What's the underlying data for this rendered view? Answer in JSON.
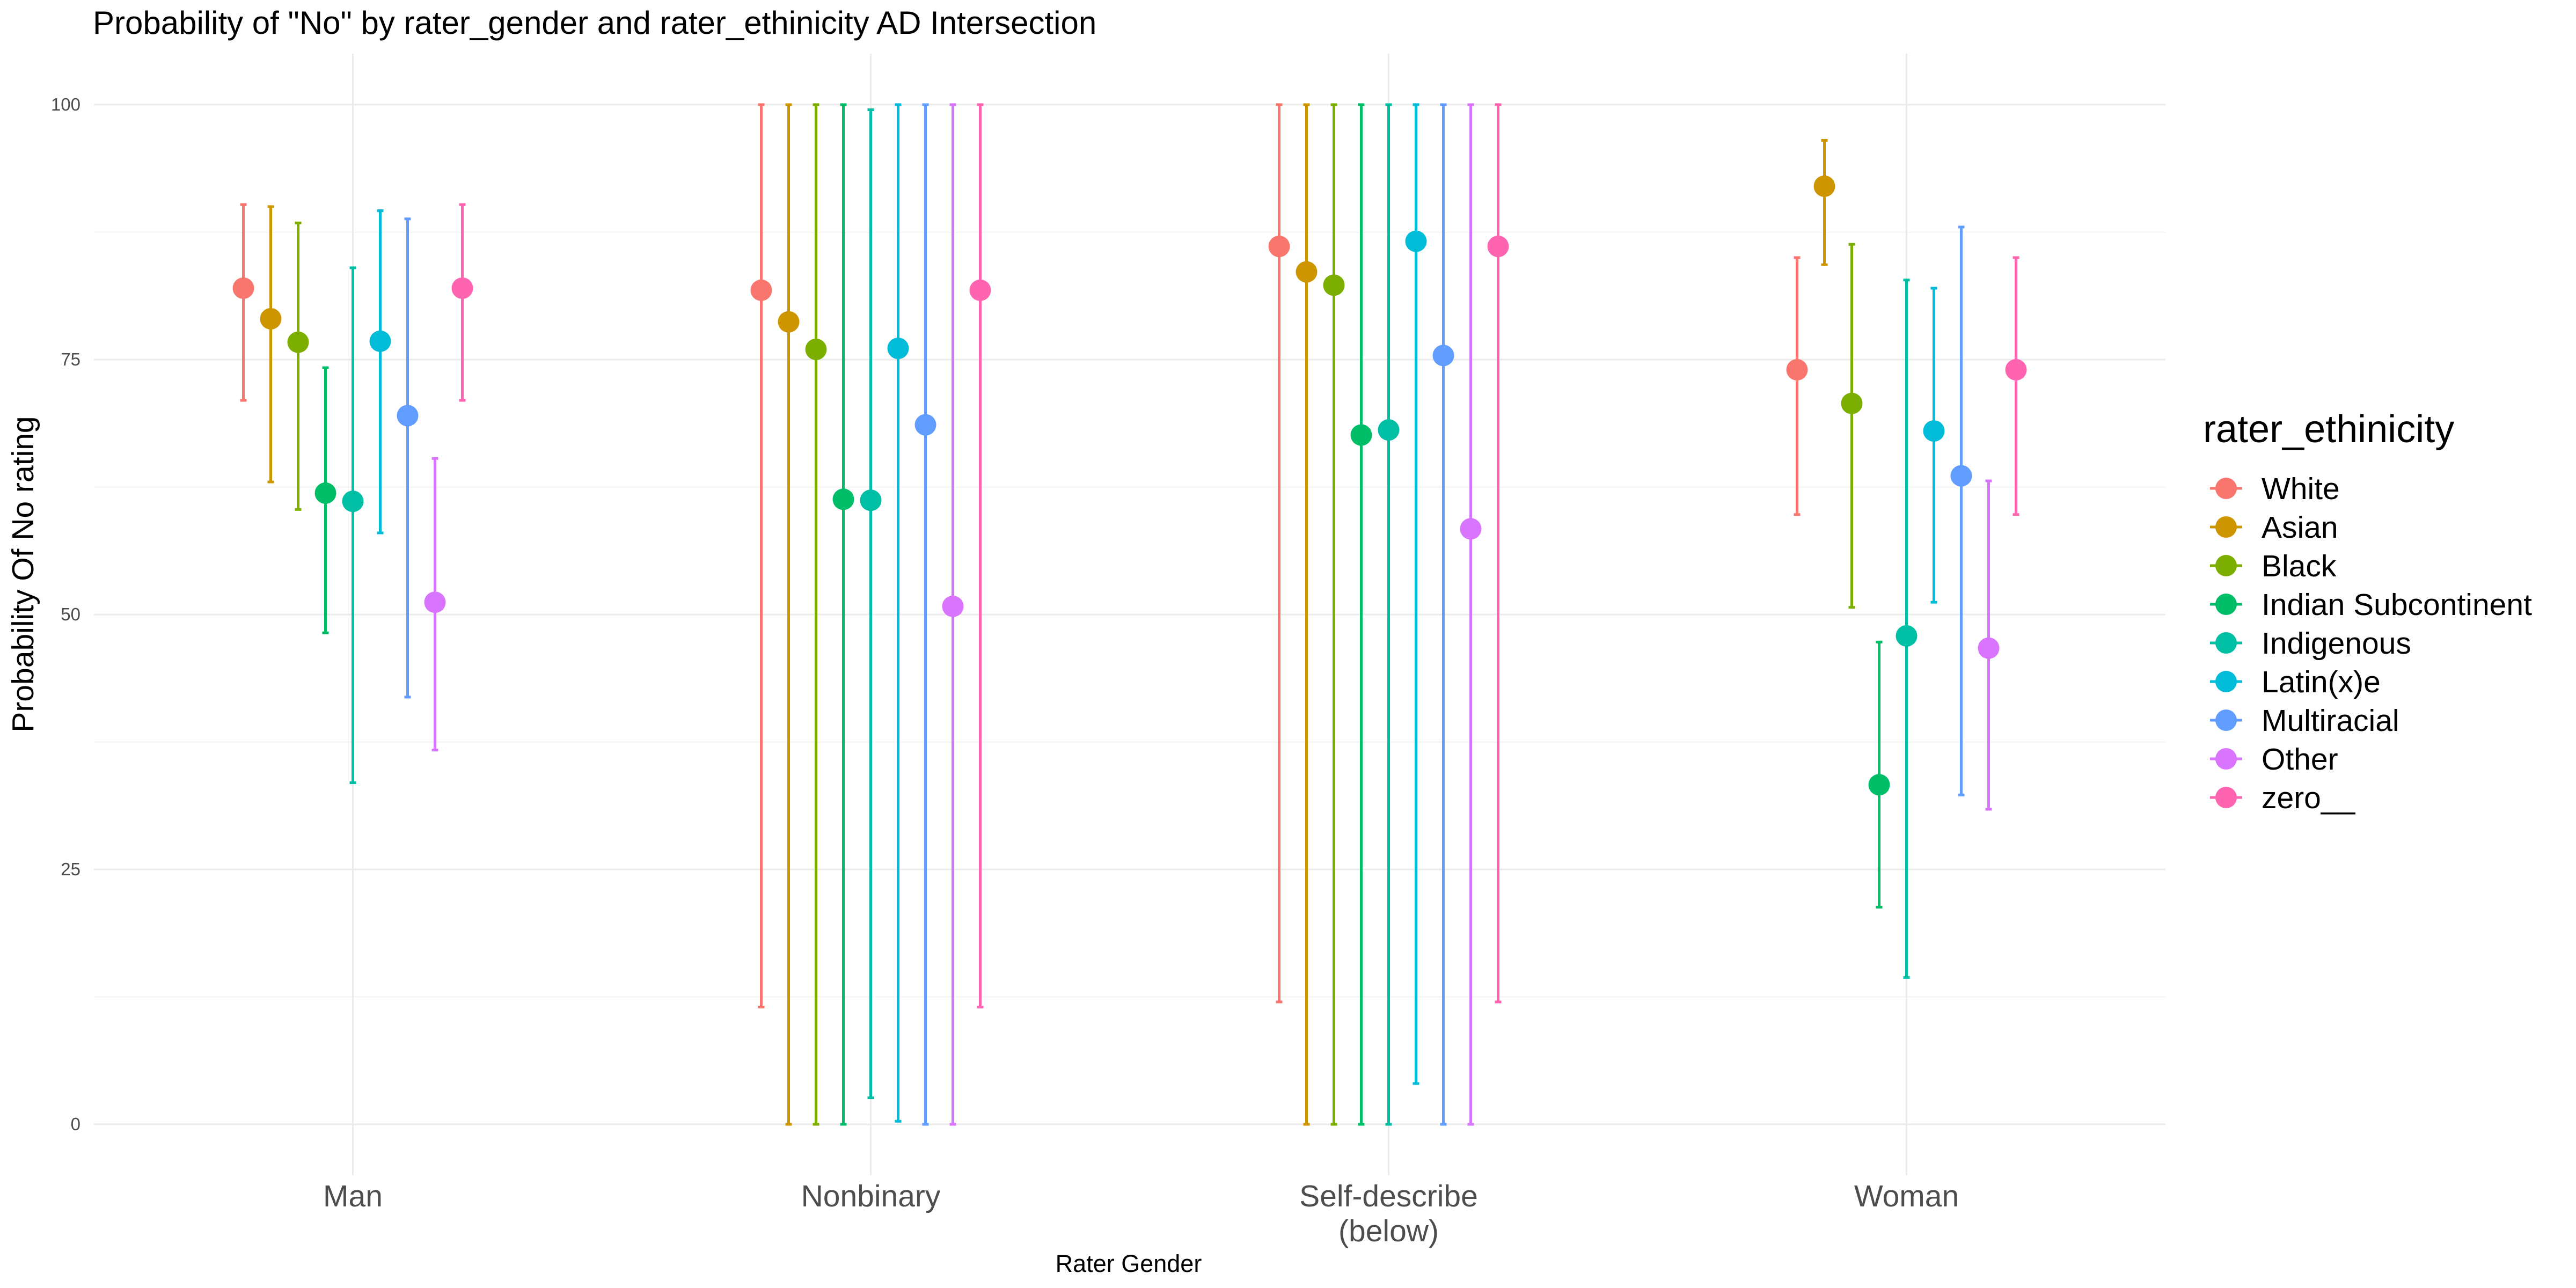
{
  "chart_data": {
    "type": "errorbar-point",
    "title": "Probability of \"No\" by rater_gender and  rater_ethinicity  AD Intersection",
    "xlabel": "Rater Gender",
    "ylabel": "Probability Of No rating",
    "ylim": [
      -5,
      105
    ],
    "yticks": [
      0,
      25,
      50,
      75,
      100
    ],
    "grid": true,
    "legend_title": "rater_ethinicity",
    "legend_position": "right",
    "categories": [
      [
        "Man"
      ],
      [
        "Nonbinary"
      ],
      [
        "Self-describe",
        "(below)"
      ],
      [
        "Woman"
      ]
    ],
    "series": [
      {
        "name": "White",
        "color": "#F8766D",
        "values": [
          82,
          81.8,
          86.1,
          74
        ],
        "lower": [
          71,
          11.5,
          12,
          59.8
        ],
        "upper": [
          90.2,
          100,
          100,
          85
        ]
      },
      {
        "name": "Asian",
        "color": "#CD9600",
        "values": [
          79,
          78.7,
          83.6,
          92
        ],
        "lower": [
          63,
          0,
          0,
          84.3
        ],
        "upper": [
          90,
          100,
          100,
          96.5
        ]
      },
      {
        "name": "Black",
        "color": "#7CAE00",
        "values": [
          76.7,
          76,
          82.3,
          70.7
        ],
        "lower": [
          60.3,
          0,
          0,
          50.7
        ],
        "upper": [
          88.4,
          100,
          100,
          86.3
        ]
      },
      {
        "name": "Indian Subcontinent",
        "color": "#00BE67",
        "values": [
          61.9,
          61.3,
          67.6,
          33.3
        ],
        "lower": [
          48.2,
          0,
          0,
          21.3
        ],
        "upper": [
          74.2,
          100,
          100,
          47.3
        ]
      },
      {
        "name": "Indigenous",
        "color": "#00BFA4",
        "values": [
          61.1,
          61.2,
          68.1,
          47.9
        ],
        "lower": [
          33.5,
          2.6,
          0,
          14.4
        ],
        "upper": [
          84,
          99.5,
          100,
          82.8
        ]
      },
      {
        "name": "Latin(x)e",
        "color": "#00BCD8",
        "values": [
          76.8,
          76.1,
          86.6,
          68
        ],
        "lower": [
          58,
          0.3,
          4,
          51.2
        ],
        "upper": [
          89.6,
          100,
          100,
          82
        ]
      },
      {
        "name": "Multiracial",
        "color": "#619CFF",
        "values": [
          69.5,
          68.6,
          75.4,
          63.6
        ],
        "lower": [
          41.9,
          0,
          0,
          32.3
        ],
        "upper": [
          88.8,
          100,
          100,
          88
        ]
      },
      {
        "name": "Other",
        "color": "#D874FD",
        "values": [
          51.2,
          50.8,
          58.4,
          46.7
        ],
        "lower": [
          36.7,
          0,
          0,
          30.9
        ],
        "upper": [
          65.3,
          100,
          100,
          63.1
        ]
      },
      {
        "name": "zero__",
        "color": "#FF64B0",
        "values": [
          82,
          81.8,
          86.1,
          74
        ],
        "lower": [
          71,
          11.5,
          12,
          59.8
        ],
        "upper": [
          90.2,
          100,
          100,
          85
        ]
      }
    ]
  }
}
